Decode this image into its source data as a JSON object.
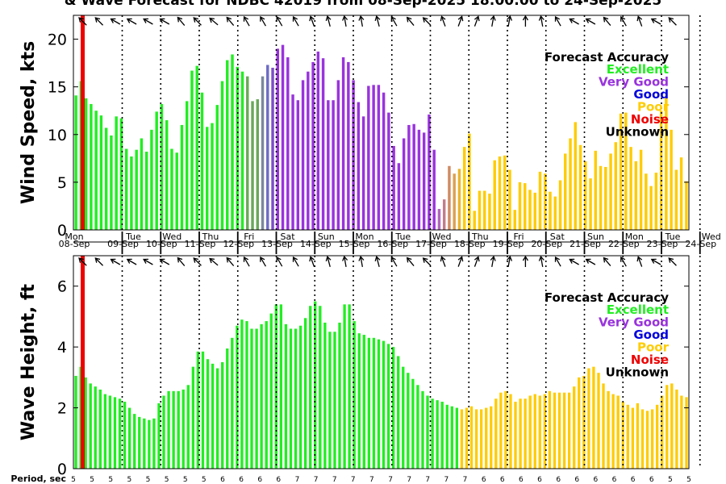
{
  "chart_data": {
    "type": "bar",
    "title": "& Wave Forecast for NDBC 42019 from 08-Sep-2025 18:00:00 to 24-Sep-2025",
    "x_day_labels": [
      "Mon",
      "Tue",
      "Wed",
      "Thu",
      "Fri",
      "Sat",
      "Sun",
      "Mon",
      "Tue",
      "Wed",
      "Thu",
      "Fri",
      "Sat",
      "Sun",
      "Mon",
      "Tue",
      "Wed"
    ],
    "x_date_labels": [
      "08-Sep",
      "09-Sep",
      "10-Sep",
      "11-Sep",
      "12-Sep",
      "13-Sep",
      "14-Sep",
      "15-Sep",
      "16-Sep",
      "17-Sep",
      "18-Sep",
      "19-Sep",
      "20-Sep",
      "21-Sep",
      "22-Sep",
      "23-Sep",
      "24-Sep"
    ],
    "period_label": "Period, sec",
    "periods": [
      "5",
      "5",
      "5",
      "5",
      "5",
      "5",
      "5",
      "5",
      "6",
      "6",
      "6",
      "6",
      "7",
      "7",
      "7",
      "7",
      "7",
      "7",
      "7",
      "7",
      "7",
      "7",
      "6",
      "6",
      "6",
      "6",
      "6",
      "6",
      "6",
      "6",
      "6",
      "6",
      "5",
      "5"
    ],
    "legend": {
      "title": "Forecast Accuracy",
      "items": [
        {
          "label": "Excellent",
          "color": "#22ee22"
        },
        {
          "label": "Very Good",
          "color": "#9933dd"
        },
        {
          "label": "Good",
          "color": "#0000dd"
        },
        {
          "label": "Poor",
          "color": "#ffcc00"
        },
        {
          "label": "Noise",
          "color": "#ee0000"
        },
        {
          "label": "Unknown",
          "color": "#000000"
        }
      ]
    },
    "charts": [
      {
        "name": "wind",
        "ylabel": "Wind Speed, kts",
        "ylim": [
          0,
          22.5
        ],
        "yticks": [
          "0",
          "5",
          "10",
          "15",
          "20"
        ],
        "values": [
          14.1,
          15.6,
          13.8,
          13.2,
          12.5,
          12.0,
          10.7,
          9.9,
          11.9,
          11.7,
          8.5,
          7.7,
          8.4,
          9.6,
          8.2,
          10.5,
          12.4,
          13.2,
          11.5,
          8.5,
          8.1,
          11.0,
          13.5,
          16.7,
          17.2,
          14.4,
          10.8,
          11.2,
          13.1,
          15.6,
          17.8,
          18.4,
          17.1,
          16.6,
          16.1,
          13.5,
          13.7,
          16.1,
          17.3,
          17.0,
          19.0,
          19.4,
          18.1,
          14.2,
          13.6,
          15.7,
          16.6,
          17.6,
          18.7,
          18.0,
          13.6,
          13.6,
          15.7,
          18.1,
          17.6,
          15.7,
          13.4,
          11.9,
          15.1,
          15.2,
          15.2,
          14.4,
          12.3,
          8.8,
          7.0,
          9.6,
          11.0,
          11.1,
          10.5,
          10.2,
          12.1,
          8.4,
          2.2,
          3.2,
          6.7,
          5.9,
          6.4,
          8.7,
          10.1,
          2.0,
          4.1,
          4.1,
          3.8,
          7.3,
          7.7,
          7.8,
          6.3,
          2.1,
          5.0,
          4.9,
          4.2,
          3.9,
          6.1,
          5.9,
          4.0,
          3.5,
          5.2,
          8.0,
          9.6,
          11.3,
          8.9,
          7.2,
          5.4,
          8.3,
          6.7,
          6.6,
          8.0,
          9.2,
          12.2,
          12.3,
          8.7,
          7.2,
          8.4,
          5.9,
          4.6,
          6.0,
          12.5,
          14.0,
          10.5,
          6.3,
          7.6,
          5.1
        ],
        "accuracy": [
          "E",
          "E",
          "E",
          "E",
          "E",
          "E",
          "E",
          "E",
          "E",
          "E",
          "E",
          "E",
          "E",
          "E",
          "E",
          "E",
          "E",
          "E",
          "E",
          "E",
          "E",
          "E",
          "E",
          "E",
          "E",
          "E",
          "E",
          "E",
          "E",
          "E",
          "E",
          "E",
          "E",
          "E",
          "T1",
          "T1",
          "T1",
          "T2",
          "T3",
          "T4",
          "V",
          "V",
          "V",
          "V",
          "V",
          "V",
          "V",
          "V",
          "V",
          "V",
          "V",
          "V",
          "V",
          "V",
          "V",
          "V",
          "V",
          "V",
          "V",
          "V",
          "V",
          "V",
          "V",
          "V",
          "V",
          "V",
          "V",
          "V",
          "V",
          "V",
          "V",
          "V",
          "T5",
          "T6",
          "T7",
          "T8",
          "T9",
          "P",
          "P",
          "P",
          "P",
          "P",
          "P",
          "P",
          "P",
          "P",
          "P",
          "P",
          "P",
          "P",
          "P",
          "P",
          "P",
          "P",
          "P",
          "P",
          "P",
          "P",
          "P",
          "P",
          "P",
          "P",
          "P",
          "P",
          "P",
          "P",
          "P",
          "P",
          "P",
          "P",
          "P",
          "P",
          "P",
          "P",
          "P",
          "P",
          "P",
          "P",
          "P",
          "P",
          "P",
          "P",
          "P"
        ]
      },
      {
        "name": "wave",
        "ylabel": "Wave Height, ft",
        "ylim": [
          0,
          7
        ],
        "yticks": [
          "0",
          "2",
          "4",
          "6"
        ],
        "values": [
          3.05,
          3.35,
          3.0,
          2.8,
          2.7,
          2.6,
          2.45,
          2.4,
          2.35,
          2.3,
          2.2,
          2.0,
          1.8,
          1.7,
          1.65,
          1.6,
          1.65,
          2.15,
          2.4,
          2.55,
          2.55,
          2.55,
          2.6,
          2.75,
          3.35,
          3.85,
          3.85,
          3.6,
          3.45,
          3.3,
          3.5,
          3.95,
          4.3,
          4.7,
          4.9,
          4.85,
          4.6,
          4.6,
          4.75,
          4.85,
          5.1,
          5.4,
          5.4,
          4.75,
          4.6,
          4.6,
          4.7,
          4.95,
          5.35,
          5.5,
          5.35,
          4.8,
          4.5,
          4.5,
          4.8,
          5.4,
          5.4,
          4.85,
          4.45,
          4.4,
          4.3,
          4.3,
          4.25,
          4.2,
          4.1,
          4.0,
          3.7,
          3.35,
          3.15,
          2.95,
          2.75,
          2.55,
          2.4,
          2.3,
          2.25,
          2.2,
          2.1,
          2.05,
          2.0,
          1.95,
          2.0,
          2.05,
          1.95,
          1.95,
          2.0,
          2.05,
          2.3,
          2.5,
          2.55,
          2.45,
          2.2,
          2.3,
          2.3,
          2.4,
          2.45,
          2.4,
          2.45,
          2.55,
          2.5,
          2.5,
          2.5,
          2.5,
          2.7,
          3.0,
          3.05,
          3.3,
          3.35,
          3.15,
          2.8,
          2.55,
          2.45,
          2.4,
          2.2,
          2.1,
          2.0,
          2.15,
          1.95,
          1.9,
          1.95,
          2.1,
          2.4,
          2.75,
          2.8,
          2.6,
          2.4,
          2.35
        ],
        "accuracy": [
          "E",
          "E",
          "E",
          "E",
          "E",
          "E",
          "E",
          "E",
          "E",
          "E",
          "E",
          "E",
          "E",
          "E",
          "E",
          "E",
          "E",
          "E",
          "E",
          "E",
          "E",
          "E",
          "E",
          "E",
          "E",
          "E",
          "E",
          "E",
          "E",
          "E",
          "E",
          "E",
          "E",
          "E",
          "E",
          "E",
          "E",
          "E",
          "E",
          "E",
          "E",
          "E",
          "E",
          "E",
          "E",
          "E",
          "E",
          "E",
          "E",
          "E",
          "E",
          "E",
          "E",
          "E",
          "E",
          "E",
          "E",
          "E",
          "E",
          "E",
          "E",
          "E",
          "E",
          "E",
          "E",
          "E",
          "E",
          "E",
          "E",
          "E",
          "E",
          "E",
          "E",
          "E",
          "E",
          "E",
          "E",
          "E",
          "E",
          "P",
          "P",
          "P",
          "P",
          "P",
          "P",
          "P",
          "P",
          "P",
          "P",
          "P",
          "P",
          "P",
          "P",
          "P",
          "P",
          "P",
          "P",
          "P",
          "P",
          "P",
          "P",
          "P",
          "P",
          "P",
          "P",
          "P",
          "P",
          "P",
          "P",
          "P",
          "P",
          "P",
          "P",
          "P",
          "P",
          "P",
          "P",
          "P",
          "P",
          "P",
          "P",
          "P",
          "P",
          "P",
          "P",
          "P"
        ]
      }
    ],
    "accuracy_colors": {
      "E": "#22ee22",
      "V": "#9933dd",
      "P": "#ffcc00",
      "T1": "#6aa85a",
      "T2": "#7a889e",
      "T3": "#6e6cc4",
      "T4": "#7d4cc9",
      "T5": "#b066bb",
      "T6": "#c27c8a",
      "T7": "#cf8a62",
      "T8": "#dba050",
      "T9": "#eab42c"
    },
    "arrow_dirs_deg": [
      315,
      315,
      300,
      300,
      300,
      300,
      320,
      315,
      310,
      320,
      330,
      330,
      330,
      330,
      340,
      345,
      350,
      350,
      345,
      330,
      320,
      315,
      340,
      20,
      20,
      10,
      10,
      360,
      350,
      330,
      300,
      300,
      320,
      330,
      340,
      300,
      315
    ]
  }
}
